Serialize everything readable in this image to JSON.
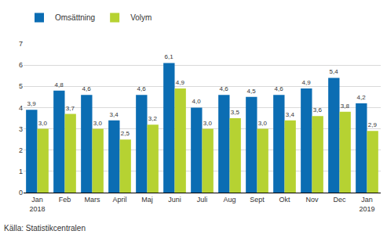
{
  "chart_data": {
    "type": "bar",
    "categories": [
      "Jan\n2018",
      "Feb",
      "Mars",
      "April",
      "Maj",
      "Juni",
      "Juli",
      "Aug",
      "Sept",
      "Okt",
      "Nov",
      "Dec",
      "Jan\n2019"
    ],
    "series": [
      {
        "name": "Omsättning",
        "color": "#0b6db3",
        "values": [
          3.9,
          4.8,
          4.6,
          3.4,
          4.6,
          6.1,
          4.0,
          4.6,
          4.5,
          4.6,
          4.9,
          5.4,
          4.2
        ],
        "value_labels": [
          "3,9",
          "4,8",
          "4,6",
          "3,4",
          "4,6",
          "6,1",
          "4,0",
          "4,6",
          "4,5",
          "4,6",
          "4,9",
          "5,4",
          "4,2"
        ]
      },
      {
        "name": "Volym",
        "color": "#b6d232",
        "values": [
          3.0,
          3.7,
          3.0,
          2.5,
          3.2,
          4.9,
          3.0,
          3.5,
          3.0,
          3.4,
          3.6,
          3.8,
          2.9
        ],
        "value_labels": [
          "3,0",
          "3,7",
          "3,0",
          "2,5",
          "3,2",
          "4,9",
          "3,0",
          "3,5",
          "3,0",
          "3,4",
          "3,6",
          "3,8",
          "2,9"
        ]
      }
    ],
    "ylim": [
      0,
      7
    ],
    "yticks": [
      0,
      1,
      2,
      3,
      4,
      5,
      6,
      7
    ],
    "grid": true,
    "legend": "top-left",
    "data_labels": true,
    "annotations": [
      "Källa: Statistikcentralen"
    ]
  }
}
